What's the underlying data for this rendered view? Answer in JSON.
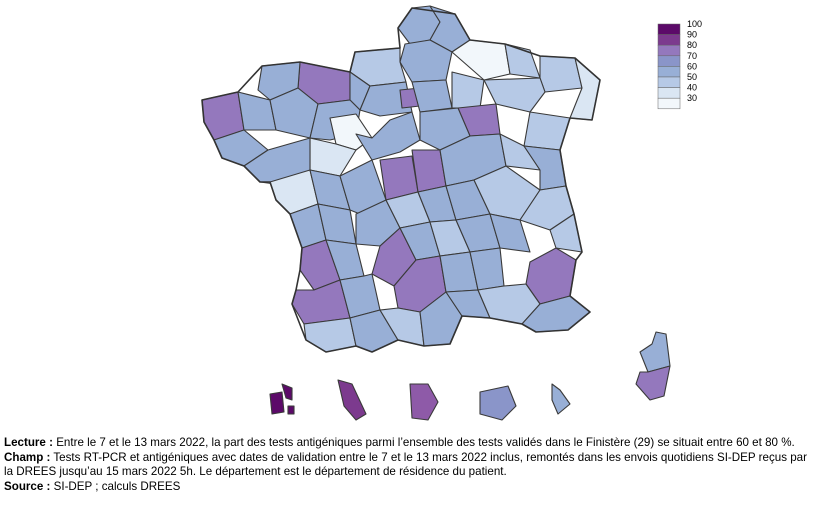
{
  "map": {
    "legend": {
      "labels": [
        "100",
        "90",
        "80",
        "70",
        "60",
        "50",
        "40",
        "30"
      ],
      "colors": [
        "#5c0a69",
        "#7c3a8e",
        "#9478bd",
        "#8a95c9",
        "#98afd6",
        "#b6c9e6",
        "#dae6f3",
        "#f2f7fb"
      ]
    },
    "highlighted_departments": {
      "Finistere_29": "60-80 %",
      "Guadeloupe": "90-100 %",
      "Martinique": "80-90 %",
      "Guyane": "70-80 %"
    }
  },
  "notes": {
    "lecture_label": "Lecture :",
    "lecture_text": " Entre le 7 et le 13 mars 2022, la part des tests antigéniques parmi l’ensemble des tests validés dans le Finistère (29) se situait entre 60 et 80 %.",
    "champ_label": "Champ :",
    "champ_text": " Tests RT-PCR et antigéniques avec dates de validation entre le 7 et le 13 mars 2022 inclus, remontés dans les envois quotidiens SI-DEP reçus par la DREES jusqu’au 15 mars 2022 5h. Le département est le département de résidence du patient.",
    "source_label": "Source :",
    "source_text": " SI-DEP ; calculs DREES"
  }
}
